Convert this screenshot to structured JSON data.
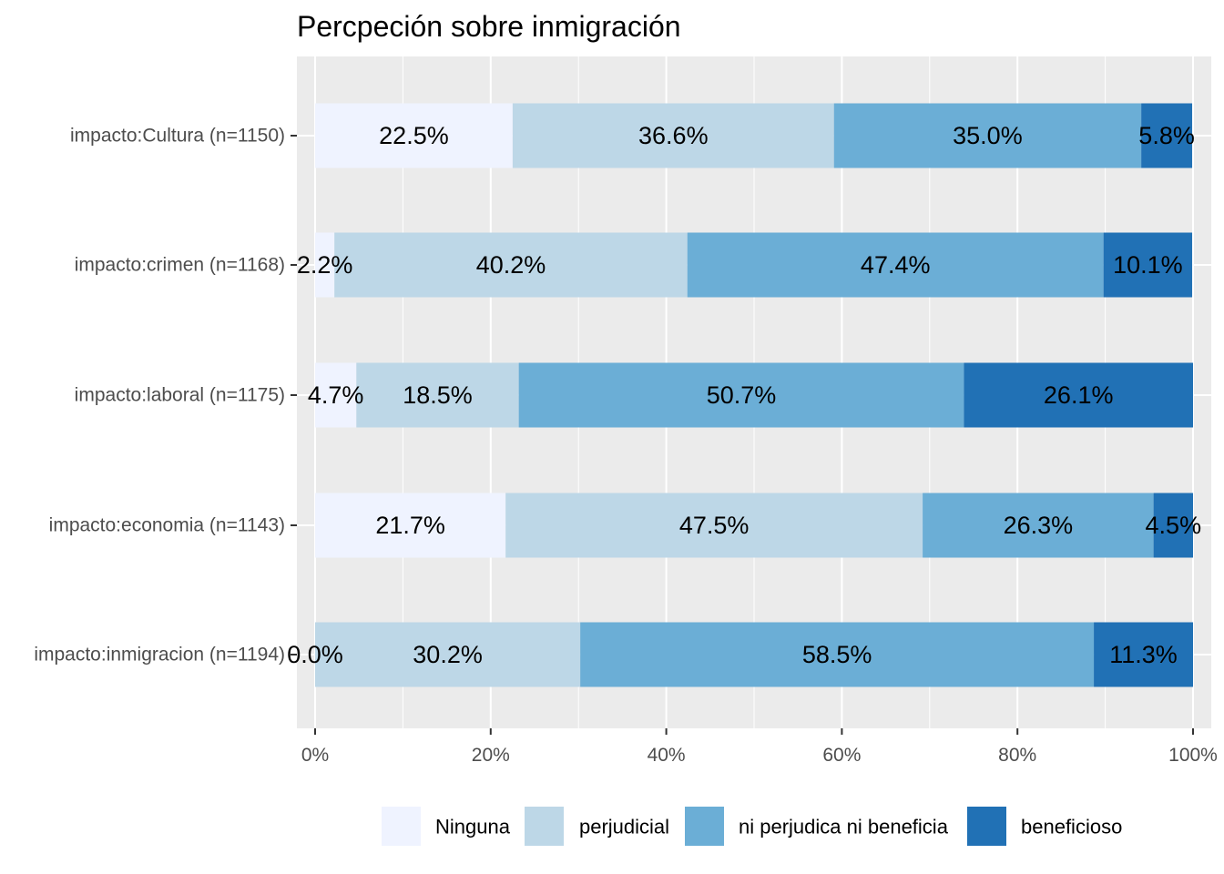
{
  "chart_data": {
    "type": "bar",
    "orientation": "horizontal",
    "stacked": "percent",
    "title": "Percpeción sobre inmigración",
    "xlabel": "",
    "ylabel": "",
    "xlim": [
      0,
      100
    ],
    "x_tick_labels": [
      "0%",
      "20%",
      "40%",
      "60%",
      "80%",
      "100%"
    ],
    "categories": [
      "impacto:Cultura (n=1150)",
      "impacto:crimen (n=1168)",
      "impacto:laboral (n=1175)",
      "impacto:economia (n=1143)",
      "impacto:inmigracion (n=1194)"
    ],
    "series": [
      {
        "name": "Ninguna",
        "color": "#eff3ff",
        "values": [
          22.5,
          2.2,
          4.7,
          21.7,
          0.0
        ],
        "labels": [
          "22.5%",
          "2.2%",
          "4.7%",
          "21.7%",
          "0.0%"
        ]
      },
      {
        "name": "perjudicial",
        "color": "#bdd7e7",
        "values": [
          36.6,
          40.2,
          18.5,
          47.5,
          30.2
        ],
        "labels": [
          "36.6%",
          "40.2%",
          "18.5%",
          "47.5%",
          "30.2%"
        ]
      },
      {
        "name": "ni perjudica ni beneficia",
        "color": "#6baed6",
        "values": [
          35.0,
          47.4,
          50.7,
          26.3,
          58.5
        ],
        "labels": [
          "35.0%",
          "47.4%",
          "50.7%",
          "26.3%",
          "58.5%"
        ]
      },
      {
        "name": "beneficioso",
        "color": "#2171b5",
        "values": [
          5.8,
          10.1,
          26.1,
          4.5,
          11.3
        ],
        "labels": [
          "5.8%",
          "10.1%",
          "26.1%",
          "4.5%",
          "11.3%"
        ]
      }
    ],
    "grid": true,
    "legend_position": "bottom",
    "panel_background": "#ebebeb"
  }
}
